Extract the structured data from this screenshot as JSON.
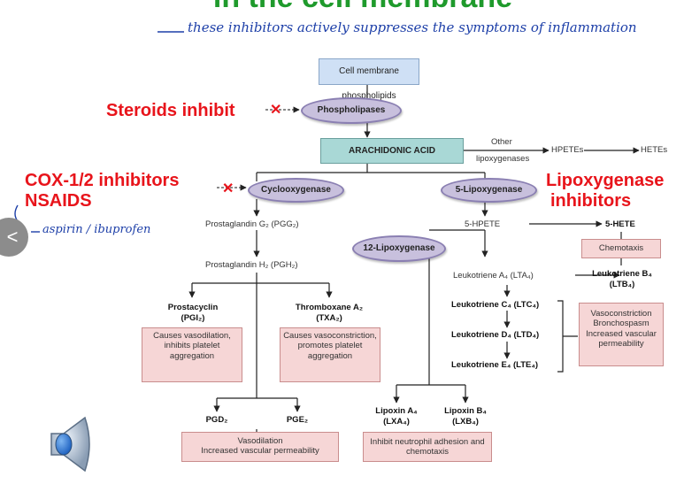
{
  "slide": {
    "title_partial": "in the cell membrane",
    "handwritten_note": "these inhibitors actively suppresses the symptoms of inflammation",
    "handwritten_note_2": "aspirin / ibuprofen",
    "nav_chevron": "<"
  },
  "annotations": {
    "steroids": "Steroids inhibit",
    "cox_line1": "COX-1/2 inhibitors",
    "cox_line2": "NSAIDS",
    "lipox_line1": "Lipoxygenase",
    "lipox_line2": "inhibitors",
    "block_mark": "✕"
  },
  "pathway": {
    "phospholipids": "Cell membrane phospholipids",
    "phospholipases": "Phospholipases",
    "arachidonic_acid": "ARACHIDONIC ACID",
    "other_lipox_1": "Other",
    "other_lipox_2": "lipoxygenases",
    "hpetes": "HPETEs",
    "hetes": "HETEs",
    "cyclooxygenase": "Cyclooxygenase",
    "five_lipoxygenase": "5-Lipoxygenase",
    "pgg2": "Prostaglandin G₂ (PGG₂)",
    "pgh2": "Prostaglandin H₂ (PGH₂)",
    "twelve_lipoxygenase": "12-Lipoxygenase",
    "five_hpete": "5-HPETE",
    "five_hete": "5-HETE",
    "chemotaxis": "Chemotaxis",
    "lta4": "Leukotriene A₄ (LTA₄)",
    "ltb4_1": "Leukotriene B₄",
    "ltb4_2": "(LTB₄)",
    "ltc4": "Leukotriene C₄ (LTC₄)",
    "ltd4": "Leukotriene D₄ (LTD₄)",
    "lte4": "Leukotriene E₄ (LTE₄)",
    "leuk_effects": "Vasoconstriction Bronchospasm Increased vascular permeability",
    "prostacyclin_1": "Prostacyclin",
    "prostacyclin_2": "(PGI₂)",
    "prostacyclin_effect": "Causes vasodilation, inhibits platelet aggregation",
    "thromboxane_1": "Thromboxane A₂",
    "thromboxane_2": "(TXA₂)",
    "thromboxane_effect": "Causes vasoconstriction, promotes platelet aggregation",
    "pgd2": "PGD₂",
    "pge2": "PGE₂",
    "pg_effect_1": "Vasodilation",
    "pg_effect_2": "Increased vascular permeability",
    "lxa4_1": "Lipoxin A₄",
    "lxa4_2": "(LXA₄)",
    "lxb4_1": "Lipoxin B₄",
    "lxb4_2": "(LXB₄)",
    "lipoxin_effect": "Inhibit neutrophil adhesion and chemotaxis"
  },
  "colors": {
    "title_green": "#1f9a2c",
    "annotation_red": "#e8141b",
    "handwriting_blue": "#1d3fa8",
    "enzyme_ellipse": "#c8c0dd",
    "effect_box": "#f6d6d6",
    "substrate_box": "#cfe0f5",
    "arachidonic_box": "#a9d8d6"
  },
  "icons": {
    "speaker": "speaker-audio-icon",
    "prev": "chevron-left-icon"
  }
}
